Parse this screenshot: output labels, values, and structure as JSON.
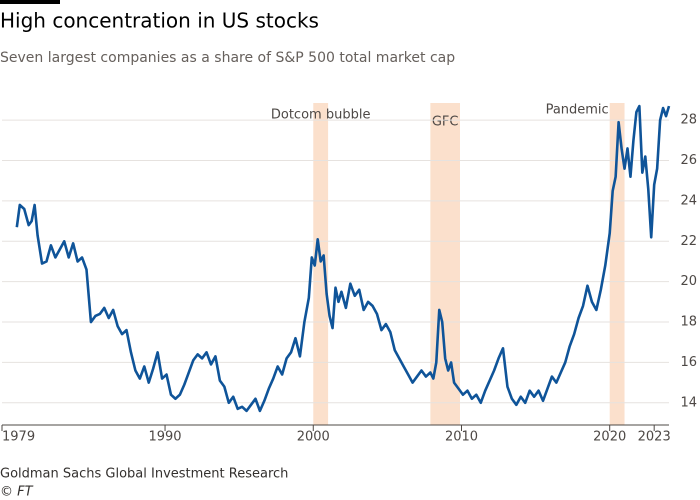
{
  "chart_data": {
    "type": "line",
    "title": "High concentration in US stocks",
    "subtitle": "Seven largest companies as a share of S&P 500 total market cap",
    "source": "Goldman Sachs Global Investment Research",
    "credit": "© FT",
    "xlim": [
      1979,
      2024
    ],
    "ylim": [
      12.9,
      29
    ],
    "xticks": [
      1979,
      1990,
      2000,
      2010,
      2020,
      2023
    ],
    "yticks": [
      14,
      16,
      18,
      20,
      22,
      24,
      26,
      28
    ],
    "grid": true,
    "shaded": [
      {
        "label": "Dotcom bubble",
        "start": 2000,
        "end": 2001,
        "color": "#fbe0cc"
      },
      {
        "label": "GFC",
        "start": 2007.9,
        "end": 2009.9,
        "color": "#fbe0cc"
      },
      {
        "label": "Pandemic",
        "start": 2020,
        "end": 2021,
        "color": "#fbe0cc"
      }
    ],
    "x": [
      1980.0,
      1980.2,
      1980.5,
      1980.8,
      1981.0,
      1981.2,
      1981.4,
      1981.7,
      1982.0,
      1982.3,
      1982.6,
      1982.9,
      1983.2,
      1983.5,
      1983.8,
      1984.1,
      1984.4,
      1984.7,
      1985.0,
      1985.3,
      1985.6,
      1985.9,
      1986.2,
      1986.5,
      1986.8,
      1987.1,
      1987.4,
      1987.7,
      1988.0,
      1988.3,
      1988.6,
      1988.9,
      1989.2,
      1989.5,
      1989.8,
      1990.1,
      1990.4,
      1990.7,
      1991.0,
      1991.3,
      1991.6,
      1991.9,
      1992.2,
      1992.5,
      1992.8,
      1993.1,
      1993.4,
      1993.7,
      1994.0,
      1994.3,
      1994.6,
      1994.9,
      1995.2,
      1995.5,
      1995.8,
      1996.1,
      1996.4,
      1996.7,
      1997.0,
      1997.3,
      1997.6,
      1997.9,
      1998.2,
      1998.5,
      1998.8,
      1999.1,
      1999.4,
      1999.7,
      1999.9,
      2000.1,
      2000.3,
      2000.5,
      2000.7,
      2000.9,
      2001.1,
      2001.3,
      2001.5,
      2001.7,
      2001.9,
      2002.2,
      2002.5,
      2002.8,
      2003.1,
      2003.4,
      2003.7,
      2004.0,
      2004.3,
      2004.6,
      2004.9,
      2005.2,
      2005.5,
      2005.8,
      2006.1,
      2006.4,
      2006.7,
      2007.0,
      2007.3,
      2007.6,
      2007.9,
      2008.1,
      2008.3,
      2008.5,
      2008.7,
      2008.9,
      2009.1,
      2009.3,
      2009.5,
      2009.8,
      2010.1,
      2010.4,
      2010.7,
      2011.0,
      2011.3,
      2011.6,
      2011.9,
      2012.2,
      2012.5,
      2012.8,
      2013.1,
      2013.4,
      2013.7,
      2014.0,
      2014.3,
      2014.6,
      2014.9,
      2015.2,
      2015.5,
      2015.8,
      2016.1,
      2016.4,
      2016.7,
      2017.0,
      2017.3,
      2017.6,
      2017.9,
      2018.2,
      2018.5,
      2018.8,
      2019.1,
      2019.4,
      2019.7,
      2020.0,
      2020.2,
      2020.4,
      2020.6,
      2020.8,
      2021.0,
      2021.2,
      2021.4,
      2021.6,
      2021.8,
      2022.0,
      2022.2,
      2022.4,
      2022.6,
      2022.8,
      2023.0,
      2023.2,
      2023.4,
      2023.6,
      2023.8,
      2024.0
    ],
    "series": [
      {
        "name": "Share of market cap",
        "color": "#0f5499",
        "values": [
          22.7,
          23.8,
          23.6,
          22.8,
          23.0,
          23.8,
          22.3,
          20.9,
          21.0,
          21.8,
          21.2,
          21.6,
          22.0,
          21.2,
          21.9,
          21.0,
          21.2,
          20.6,
          18.0,
          18.3,
          18.4,
          18.7,
          18.2,
          18.6,
          17.8,
          17.4,
          17.6,
          16.5,
          15.6,
          15.2,
          15.8,
          15.0,
          15.7,
          16.5,
          15.2,
          15.4,
          14.4,
          14.2,
          14.4,
          14.9,
          15.5,
          16.1,
          16.4,
          16.2,
          16.5,
          15.9,
          16.3,
          15.1,
          14.8,
          14.0,
          14.3,
          13.7,
          13.8,
          13.6,
          13.9,
          14.2,
          13.6,
          14.1,
          14.7,
          15.2,
          15.8,
          15.4,
          16.2,
          16.5,
          17.2,
          16.3,
          18.0,
          19.2,
          21.2,
          20.8,
          22.1,
          21.0,
          21.3,
          19.4,
          18.3,
          17.7,
          19.7,
          19.0,
          19.5,
          18.7,
          19.9,
          19.3,
          19.6,
          18.6,
          19.0,
          18.8,
          18.4,
          17.6,
          17.9,
          17.5,
          16.6,
          16.2,
          15.8,
          15.4,
          15.0,
          15.3,
          15.6,
          15.3,
          15.5,
          15.2,
          16.0,
          18.6,
          18.0,
          16.2,
          15.6,
          16.0,
          15.0,
          14.7,
          14.4,
          14.6,
          14.2,
          14.4,
          14.0,
          14.6,
          15.1,
          15.6,
          16.2,
          16.7,
          14.8,
          14.2,
          13.9,
          14.3,
          14.0,
          14.6,
          14.3,
          14.6,
          14.1,
          14.7,
          15.3,
          15.0,
          15.5,
          16.0,
          16.8,
          17.4,
          18.2,
          18.8,
          19.8,
          19.0,
          18.6,
          19.6,
          20.8,
          22.4,
          24.5,
          25.2,
          27.9,
          26.6,
          25.6,
          26.6,
          25.2,
          27.0,
          28.4,
          28.7,
          25.4,
          26.2,
          24.6,
          22.2,
          24.8,
          25.6,
          28.0,
          28.6,
          28.2,
          28.7
        ]
      }
    ]
  }
}
